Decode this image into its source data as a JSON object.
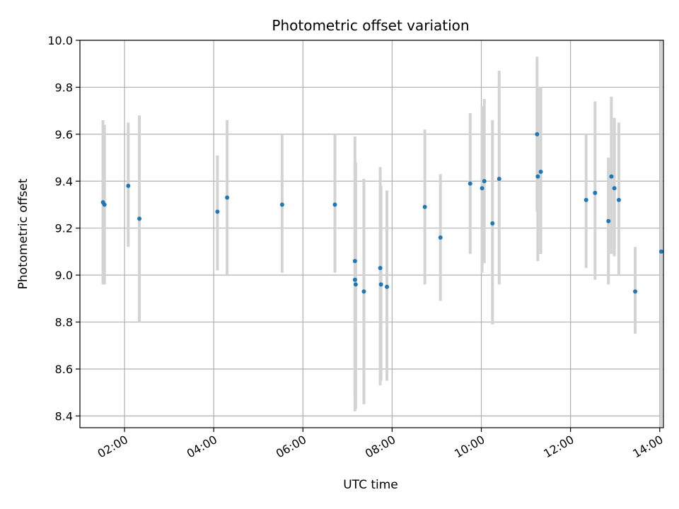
{
  "chart_data": {
    "type": "scatter",
    "title": "Photometric offset variation",
    "xlabel": "UTC time",
    "ylabel": "Photometric offset",
    "x_axis_type": "time",
    "xlim": [
      "01:00",
      "14:05"
    ],
    "ylim": [
      8.35,
      10.0
    ],
    "x_ticks": [
      "02:00",
      "04:00",
      "06:00",
      "08:00",
      "10:00",
      "12:00",
      "14:00"
    ],
    "y_ticks": [
      "8.4",
      "8.6",
      "8.8",
      "9.0",
      "9.2",
      "9.4",
      "9.6",
      "9.8",
      "10.0"
    ],
    "grid": true,
    "point_color": "#1f77b4",
    "errorbar_color": "#d3d3d3",
    "points": [
      {
        "x": "01:31",
        "y": 9.31,
        "low": 8.96,
        "high": 9.66
      },
      {
        "x": "01:33",
        "y": 9.3,
        "low": 8.96,
        "high": 9.64
      },
      {
        "x": "02:05",
        "y": 9.38,
        "low": 9.12,
        "high": 9.65
      },
      {
        "x": "02:20",
        "y": 9.24,
        "low": 8.8,
        "high": 9.68
      },
      {
        "x": "04:05",
        "y": 9.27,
        "low": 9.02,
        "high": 9.51
      },
      {
        "x": "04:18",
        "y": 9.33,
        "low": 9.0,
        "high": 9.66
      },
      {
        "x": "05:32",
        "y": 9.3,
        "low": 9.01,
        "high": 9.6
      },
      {
        "x": "06:43",
        "y": 9.3,
        "low": 9.01,
        "high": 9.6
      },
      {
        "x": "07:10",
        "y": 9.06,
        "low": 8.5,
        "high": 9.59
      },
      {
        "x": "07:10",
        "y": 8.98,
        "low": 8.42,
        "high": 9.49
      },
      {
        "x": "07:11",
        "y": 8.96,
        "low": 8.43,
        "high": 9.48
      },
      {
        "x": "07:22",
        "y": 8.93,
        "low": 8.45,
        "high": 9.41
      },
      {
        "x": "07:44",
        "y": 9.03,
        "low": 8.53,
        "high": 9.46
      },
      {
        "x": "07:45",
        "y": 8.96,
        "low": 8.55,
        "high": 9.38
      },
      {
        "x": "07:53",
        "y": 8.95,
        "low": 8.55,
        "high": 9.36
      },
      {
        "x": "08:44",
        "y": 9.29,
        "low": 8.96,
        "high": 9.62
      },
      {
        "x": "09:05",
        "y": 9.16,
        "low": 8.89,
        "high": 9.43
      },
      {
        "x": "09:45",
        "y": 9.39,
        "low": 9.09,
        "high": 9.69
      },
      {
        "x": "10:01",
        "y": 9.37,
        "low": 9.01,
        "high": 9.72
      },
      {
        "x": "10:04",
        "y": 9.4,
        "low": 9.05,
        "high": 9.75
      },
      {
        "x": "10:15",
        "y": 9.22,
        "low": 8.79,
        "high": 9.66
      },
      {
        "x": "10:24",
        "y": 9.41,
        "low": 8.96,
        "high": 9.87
      },
      {
        "x": "11:15",
        "y": 9.6,
        "low": 9.27,
        "high": 9.93
      },
      {
        "x": "11:16",
        "y": 9.42,
        "low": 9.06,
        "high": 9.8
      },
      {
        "x": "11:20",
        "y": 9.44,
        "low": 9.09,
        "high": 9.8
      },
      {
        "x": "12:21",
        "y": 9.32,
        "low": 9.03,
        "high": 9.6
      },
      {
        "x": "12:33",
        "y": 9.35,
        "low": 8.98,
        "high": 9.74
      },
      {
        "x": "12:51",
        "y": 9.23,
        "low": 8.96,
        "high": 9.5
      },
      {
        "x": "12:55",
        "y": 9.42,
        "low": 9.09,
        "high": 9.76
      },
      {
        "x": "12:59",
        "y": 9.37,
        "low": 9.08,
        "high": 9.67
      },
      {
        "x": "13:05",
        "y": 9.32,
        "low": 9.0,
        "high": 9.65
      },
      {
        "x": "13:27",
        "y": 8.93,
        "low": 8.75,
        "high": 9.12
      },
      {
        "x": "14:02",
        "y": 9.1,
        "low": 8.35,
        "high": 10.0
      }
    ]
  }
}
